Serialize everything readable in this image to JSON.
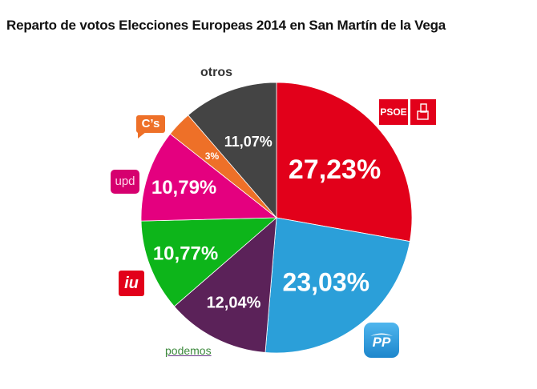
{
  "chart_data": {
    "type": "pie",
    "title": "Reparto de votos Elecciones Europeas 2014 en San Martín de la Vega",
    "slices": [
      {
        "party": "PSOE",
        "value": 27.23,
        "label": "27,23%",
        "color": "#e2001a"
      },
      {
        "party": "PP",
        "value": 23.03,
        "label": "23,03%",
        "color": "#2b9fd9"
      },
      {
        "party": "podemos",
        "value": 12.04,
        "label": "12,04%",
        "color": "#5b2259"
      },
      {
        "party": "IU",
        "value": 10.77,
        "label": "10,77%",
        "color": "#0db51a"
      },
      {
        "party": "UPyD",
        "value": 10.79,
        "label": "10,79%",
        "color": "#e4007f"
      },
      {
        "party": "C's",
        "value": 3,
        "label": "3%",
        "color": "#ee7028"
      },
      {
        "party": "otros",
        "value": 11.07,
        "label": "11,07%",
        "color": "#444444"
      }
    ]
  },
  "logos": {
    "psoe_text": "PSOE",
    "pp_text": "PP",
    "podemos_text": "podemos",
    "iu_text": "iu",
    "upd_text": "upd",
    "cs_text": "C’s",
    "otros_text": "otros"
  }
}
